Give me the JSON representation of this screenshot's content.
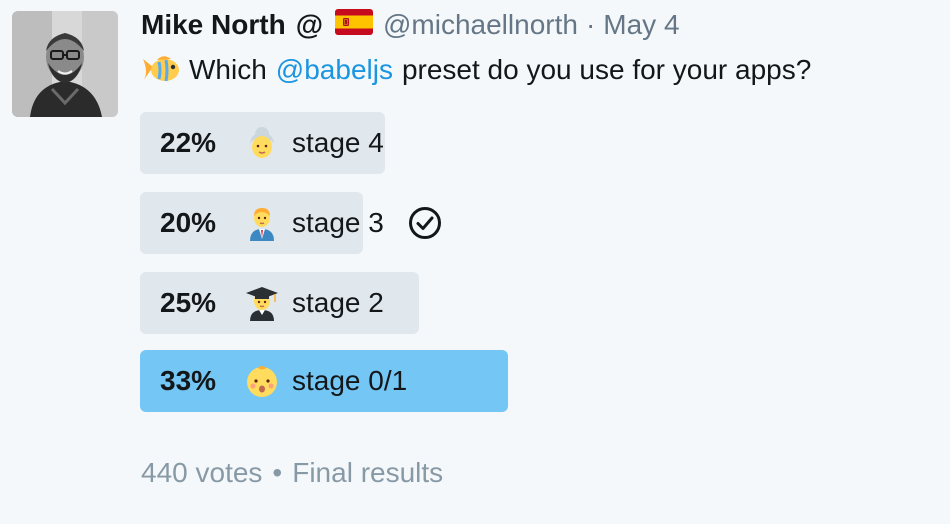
{
  "tweet": {
    "author_name": "Mike North",
    "author_suffix": "@",
    "flag_icon": "spain-flag-icon",
    "handle": "@michaellnorth",
    "separator": "·",
    "date": "May 4",
    "text_icon": "tropical-fish-icon",
    "text_before": "Which",
    "mention": "@babeljs",
    "text_after": "preset do you use for your apps?"
  },
  "poll": {
    "options": [
      {
        "percent": "22%",
        "value": 22,
        "emoji": "older-woman-icon",
        "label": "stage 4",
        "winner": false,
        "selected": false
      },
      {
        "percent": "20%",
        "value": 20,
        "emoji": "man-office-worker-icon",
        "label": "stage 3",
        "winner": false,
        "selected": true
      },
      {
        "percent": "25%",
        "value": 25,
        "emoji": "man-student-icon",
        "label": "stage 2",
        "winner": false,
        "selected": false
      },
      {
        "percent": "33%",
        "value": 33,
        "emoji": "baby-icon",
        "label": "stage 0/1",
        "winner": true,
        "selected": false
      }
    ],
    "votes": "440 votes",
    "bullet": "•",
    "status": "Final results"
  },
  "colors": {
    "background": "#f5f8fa",
    "bar": "#e1e8ed",
    "winner_bar": "#74c6f5",
    "mention": "#1b95e0",
    "muted": "#657786"
  }
}
